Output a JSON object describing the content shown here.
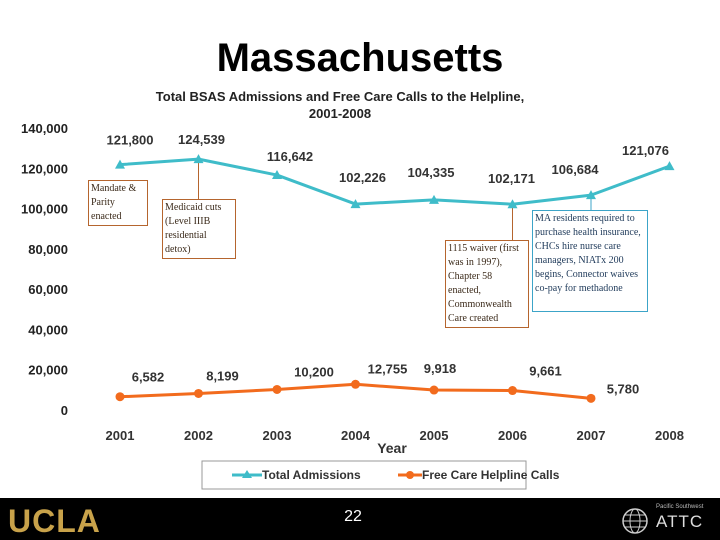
{
  "slide": {
    "title": "Massachusetts",
    "page_number": "22"
  },
  "chart_data": {
    "type": "line",
    "title": "Total BSAS Admissions and Free Care Calls to the Helpline, 2001-2008",
    "title_lines": [
      "Total BSAS Admissions and Free Care Calls to the Helpline,",
      "2001-2008"
    ],
    "xlabel": "Year",
    "ylabel": "",
    "ylim": [
      0,
      140000
    ],
    "y_ticks": [
      "0",
      "20,000",
      "40,000",
      "60,000",
      "80,000",
      "100,000",
      "120,000",
      "140,000"
    ],
    "categories": [
      "2001",
      "2002",
      "2003",
      "2004",
      "2005",
      "2006",
      "2007",
      "2008"
    ],
    "series": [
      {
        "name": "Total Admissions",
        "color": "#3fbcc9",
        "values": [
          121800,
          124539,
          116642,
          102226,
          104335,
          102171,
          106684,
          121076
        ],
        "labels": [
          "121,800",
          "124,539",
          "116,642",
          "102,226",
          "104,335",
          "102,171",
          "106,684",
          "121,076"
        ]
      },
      {
        "name": "Free Care Helpline Calls",
        "color": "#f26b1d",
        "values": [
          6582,
          8199,
          10200,
          12755,
          9918,
          9661,
          5780,
          null
        ],
        "labels": [
          "6,582",
          "8,199",
          "10,200",
          "12,755",
          "9,918",
          "9,661",
          "5,780",
          null
        ]
      }
    ],
    "legend_position": "bottom",
    "annotations": [
      {
        "id": "mandate",
        "text": "Mandate & Parity enacted",
        "anchor_year": "2001",
        "color": "#b5652e"
      },
      {
        "id": "medicaid",
        "text": "Medicaid cuts (Level IIIB residential detox)",
        "anchor_year": "2002",
        "color": "#b5652e"
      },
      {
        "id": "waiver",
        "text": "1115 waiver (first was in 1997), Chapter 58 enacted, Commonwealth Care created",
        "anchor_year": "2006",
        "color": "#b5652e"
      },
      {
        "id": "ma-residents",
        "text": "MA residents required to purchase health insurance, CHCs hire nurse care managers, NIATx 200 begins, Connector waives co-pay for methadone",
        "anchor_year": "2007",
        "color": "#3ca4c8"
      }
    ]
  },
  "footer": {
    "logo_left": "UCLA",
    "logo_right": "ATTC",
    "logo_right_sub": "Pacific Southwest"
  }
}
